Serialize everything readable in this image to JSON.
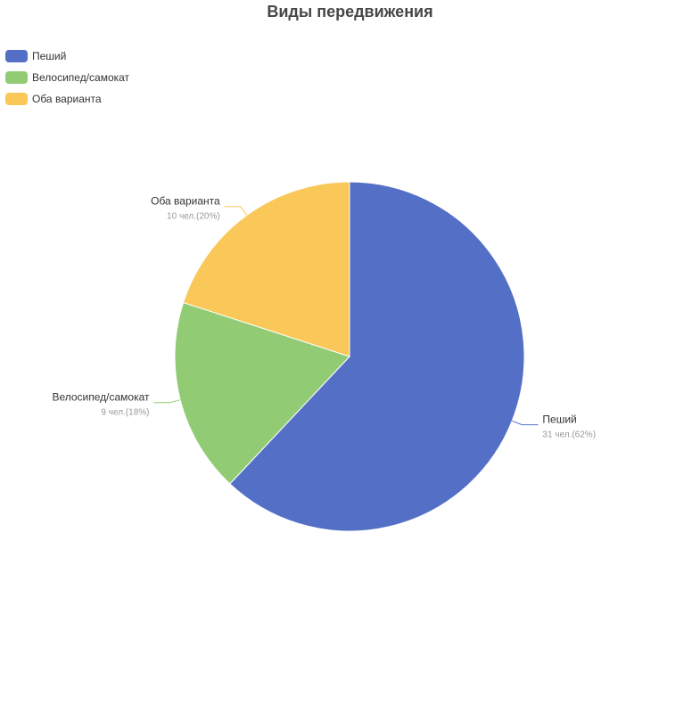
{
  "chart_data": {
    "type": "pie",
    "title": "Виды передвижения",
    "series": [
      {
        "name": "Пеший",
        "value": 31,
        "detail": "31 чел.(62%)",
        "color": "#5470c6"
      },
      {
        "name": "Велосипед/самокат",
        "value": 9,
        "detail": "9 чел.(18%)",
        "color": "#91cc75"
      },
      {
        "name": "Оба варианта",
        "value": 10,
        "detail": "10 чел.(20%)",
        "color": "#fac858"
      }
    ],
    "legend": "top-left"
  }
}
